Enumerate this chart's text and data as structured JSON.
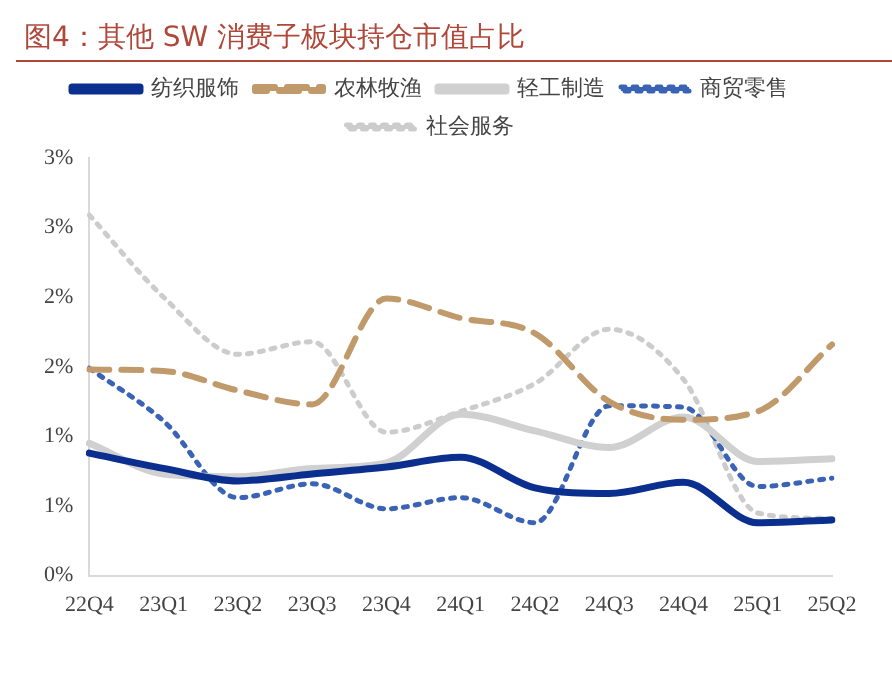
{
  "chart_data": {
    "type": "line",
    "title": "图4：其他 SW 消费子板块持仓市值占比",
    "categories": [
      "22Q4",
      "23Q1",
      "23Q2",
      "23Q3",
      "23Q4",
      "24Q1",
      "24Q2",
      "24Q3",
      "24Q4",
      "25Q1",
      "25Q2"
    ],
    "series": [
      {
        "name": "纺织服饰",
        "color": "#0b2f8f",
        "line_style": "solid",
        "values": [
          0.88,
          0.77,
          0.68,
          0.73,
          0.78,
          0.85,
          0.63,
          0.59,
          0.67,
          0.38,
          0.4
        ]
      },
      {
        "name": "农林牧渔",
        "color": "#c19a6b",
        "line_style": "dashed",
        "values": [
          1.48,
          1.47,
          1.33,
          1.23,
          1.99,
          1.85,
          1.74,
          1.25,
          1.12,
          1.18,
          1.66
        ]
      },
      {
        "name": "轻工制造",
        "color": "#d0d0d0",
        "line_style": "solid",
        "values": [
          0.95,
          0.73,
          0.71,
          0.77,
          0.81,
          1.16,
          1.04,
          0.92,
          1.14,
          0.82,
          0.84
        ]
      },
      {
        "name": "商贸零售",
        "color": "#3a62b5",
        "line_style": "dotted",
        "values": [
          1.49,
          1.11,
          0.56,
          0.66,
          0.48,
          0.56,
          0.38,
          1.22,
          1.21,
          0.64,
          0.7
        ]
      },
      {
        "name": "社会服务",
        "color": "#cccccc",
        "line_style": "dotted",
        "values": [
          2.59,
          2.0,
          1.59,
          1.68,
          1.03,
          1.18,
          1.38,
          1.77,
          1.41,
          0.45,
          0.41
        ]
      }
    ],
    "ylim": [
      0,
      3
    ],
    "yticks": [
      {
        "value": 0,
        "label": "0%"
      },
      {
        "value": 0.5,
        "label": "1%"
      },
      {
        "value": 1,
        "label": "1%"
      },
      {
        "value": 1.5,
        "label": "2%"
      },
      {
        "value": 2,
        "label": "2%"
      },
      {
        "value": 2.5,
        "label": "3%"
      },
      {
        "value": 3,
        "label": "3%"
      }
    ],
    "grid": false,
    "legend": "top",
    "marker": "none"
  }
}
